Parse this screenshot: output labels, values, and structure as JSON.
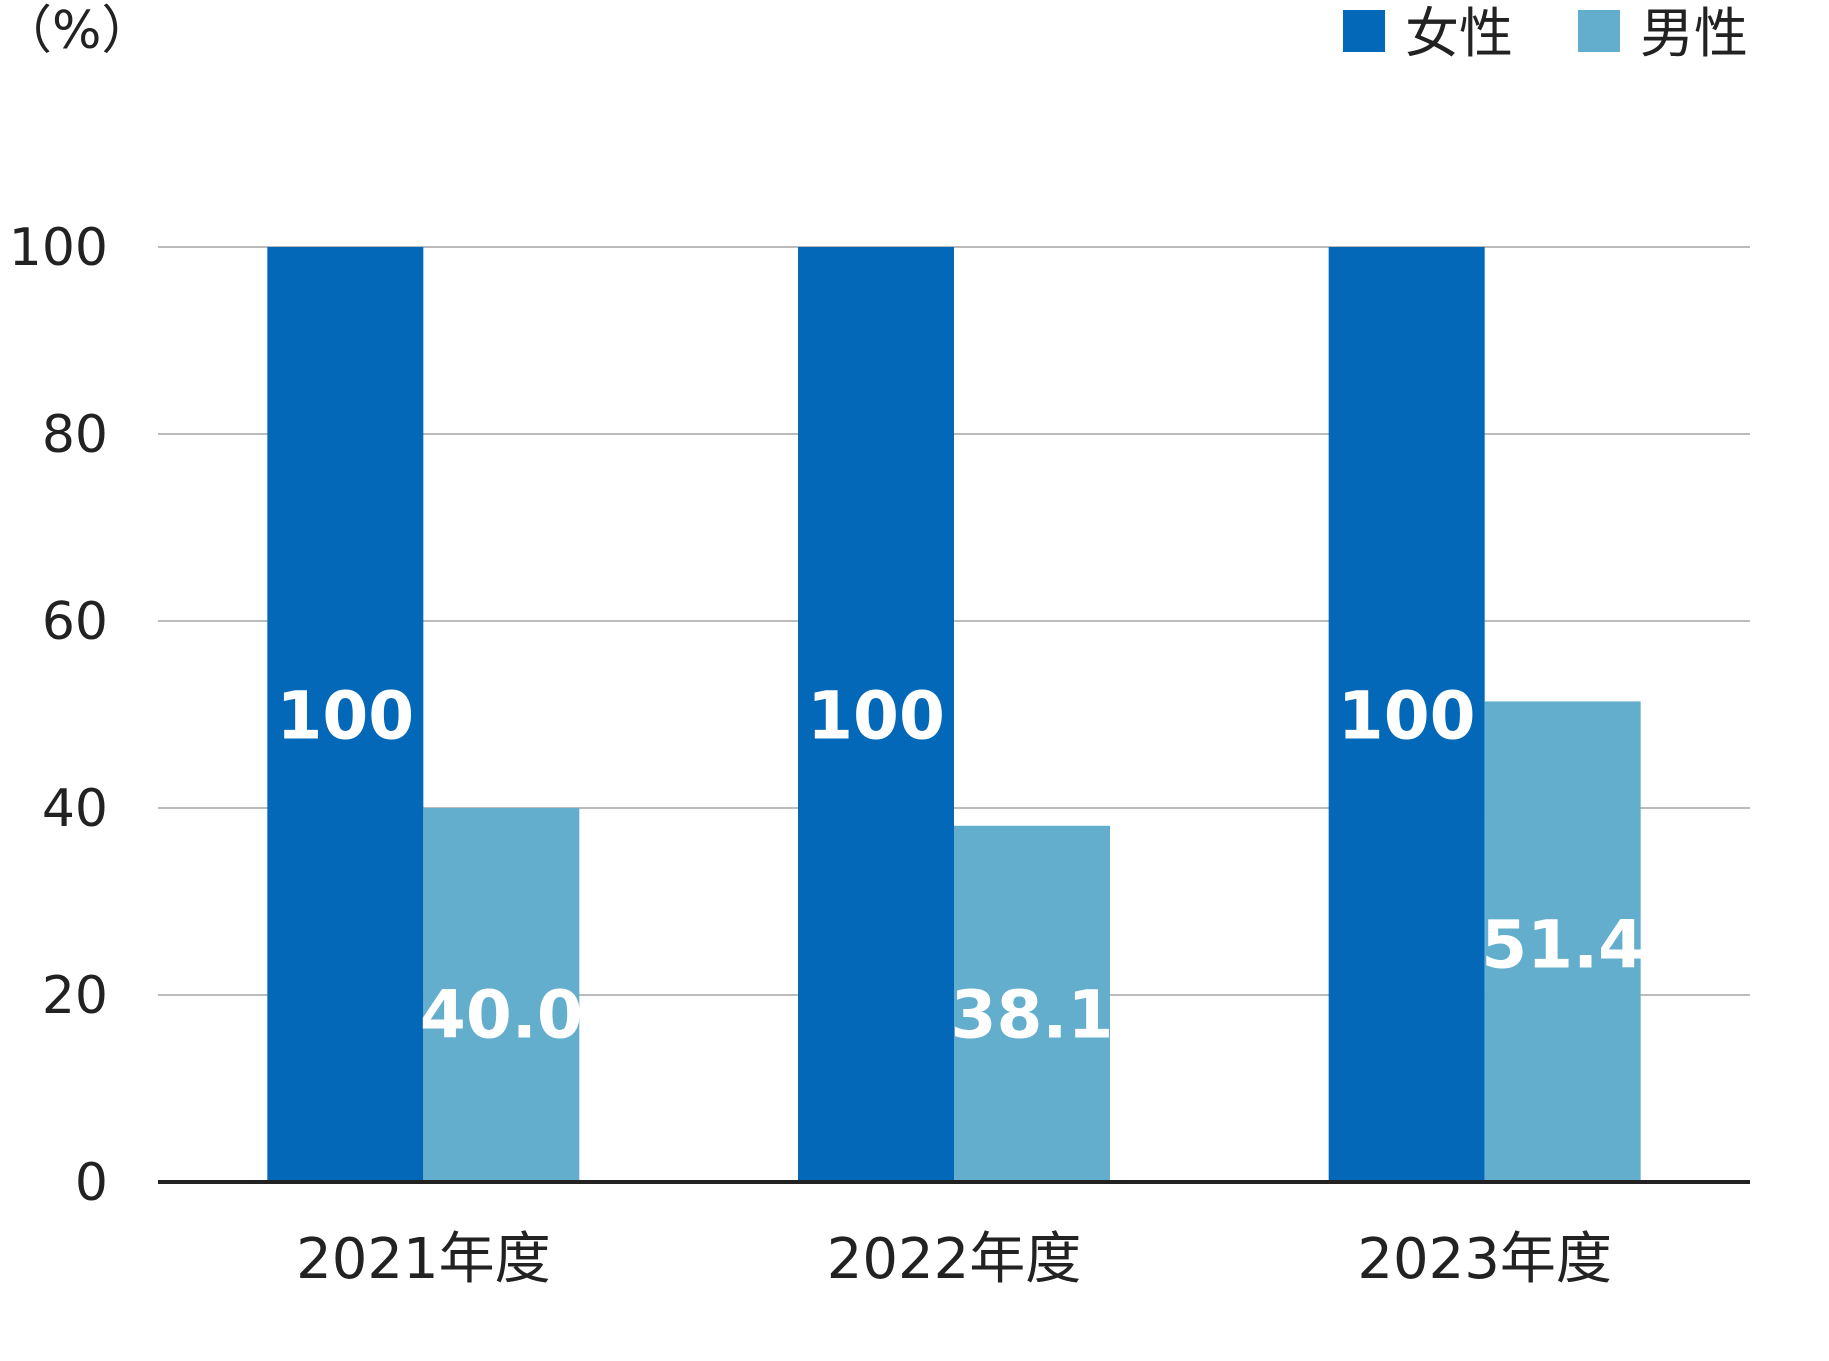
{
  "chart_data": {
    "type": "bar",
    "unit_label": "（%）",
    "categories": [
      "2021年度",
      "2022年度",
      "2023年度"
    ],
    "series": [
      {
        "name": "女性",
        "values": [
          100,
          100,
          100
        ],
        "labels": [
          "100",
          "100",
          "100"
        ],
        "color": "#0468b9"
      },
      {
        "name": "男性",
        "values": [
          40.0,
          38.1,
          51.4
        ],
        "labels": [
          "40.0",
          "38.1",
          "51.4"
        ],
        "color": "#64aecd"
      }
    ],
    "ylim": [
      0,
      100
    ],
    "yticks": [
      0,
      20,
      40,
      60,
      80,
      100
    ],
    "grid": true,
    "legend_position": "top-right",
    "gridline_color": "#bbbbbb",
    "axis_color": "#222222"
  }
}
